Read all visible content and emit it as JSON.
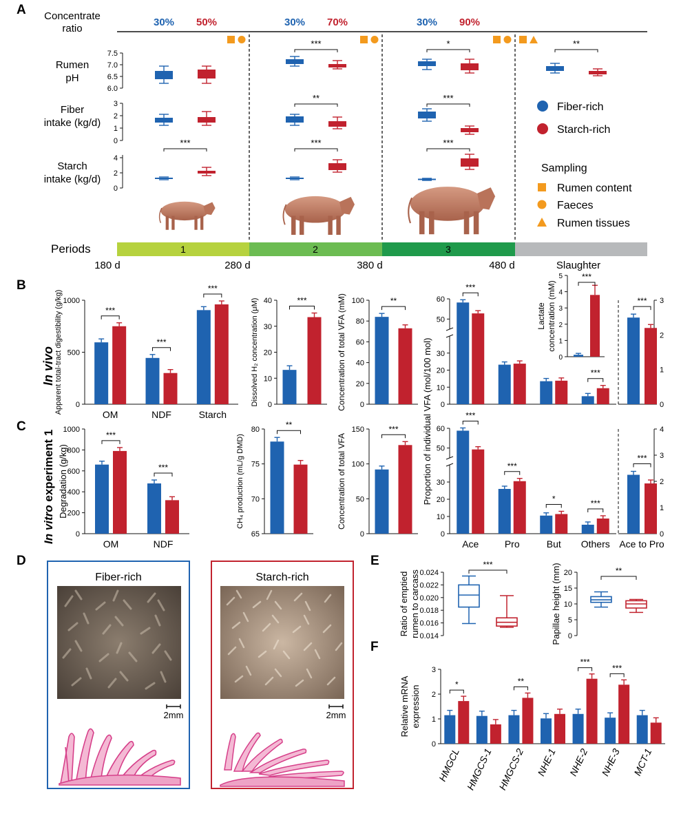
{
  "colors": {
    "fiber": "#1f63b0",
    "starch": "#c1222e",
    "orange": "#f39a1e",
    "period1": "#b6d23e",
    "period2": "#6cbc52",
    "period3": "#1f9a4b",
    "slaughter": "#b7b9bb"
  },
  "panelA": {
    "label": "A",
    "concentrate_label": [
      "Concentrate",
      "ratio"
    ],
    "ratios": [
      [
        "30%",
        "50%"
      ],
      [
        "30%",
        "70%"
      ],
      [
        "30%",
        "90%"
      ]
    ],
    "rows": [
      {
        "label": [
          "Rumen",
          "pH"
        ],
        "ticks": [
          "7.5",
          "7.0",
          "6.5",
          "6.0"
        ]
      },
      {
        "label": [
          "Fiber",
          "intake (kg/d)"
        ],
        "ticks": [
          "3",
          "2",
          "1",
          "0"
        ]
      },
      {
        "label": [
          "Starch",
          "intake (kg/d)"
        ],
        "ticks": [
          "4",
          "2",
          "0"
        ]
      }
    ],
    "sig": {
      "ph": [
        "***",
        "*",
        "**"
      ],
      "fiber": [
        "**",
        "***"
      ],
      "starch": [
        "***",
        "***",
        "***"
      ]
    },
    "legend": {
      "fiber": "Fiber-rich",
      "starch": "Starch-rich",
      "sampling_title": "Sampling",
      "content": "Rumen content",
      "faeces": "Faeces",
      "tissues": "Rumen tissues"
    },
    "periods_label": "Periods",
    "period_numbers": [
      "1",
      "2",
      "3"
    ],
    "days": [
      "180 d",
      "280 d",
      "380 d",
      "480 d"
    ],
    "slaughter": "Slaughter"
  },
  "panelB": {
    "label": "B",
    "side_label": "In vivo"
  },
  "panelC": {
    "label": "C",
    "side_label_italic": "In vitro",
    "side_label_rest": " experiment 1"
  },
  "panelD": {
    "label": "D",
    "fiber_title": "Fiber-rich",
    "starch_title": "Starch-rich",
    "scale": "2mm"
  },
  "panelE": {
    "label": "E"
  },
  "panelF": {
    "label": "F"
  },
  "chart_data": [
    {
      "id": "B1",
      "type": "bar",
      "categories": [
        "OM",
        "NDF",
        "Starch"
      ],
      "series": [
        {
          "values": [
            595,
            445,
            905
          ]
        },
        {
          "values": [
            750,
            300,
            960
          ]
        }
      ],
      "ylabel": "Apparent total-tract digestibility (g/kg)",
      "ylim": [
        0,
        1000
      ],
      "yticks": [
        "0",
        "500",
        "1000"
      ],
      "sig": [
        "***",
        "***",
        "***"
      ]
    },
    {
      "id": "B2",
      "type": "bar",
      "categories": [
        ""
      ],
      "series": [
        {
          "values": [
            13.2
          ]
        },
        {
          "values": [
            33.5
          ]
        }
      ],
      "ylabel": "Dissolved H₂ concentration (μM)",
      "ylim": [
        0,
        40
      ],
      "yticks": [
        "0",
        "10",
        "20",
        "30",
        "40"
      ],
      "sig": [
        "***"
      ]
    },
    {
      "id": "B3",
      "type": "bar",
      "categories": [
        ""
      ],
      "series": [
        {
          "values": [
            84
          ]
        },
        {
          "values": [
            73
          ]
        }
      ],
      "ylabel": "Concentration of total VFA (mM)",
      "ylim": [
        0,
        100
      ],
      "yticks": [
        "0",
        "20",
        "40",
        "60",
        "80",
        "100"
      ],
      "sig": [
        "**"
      ]
    },
    {
      "id": "B4",
      "type": "bar",
      "categories": [
        "Ace",
        "Pro",
        "But",
        "Others"
      ],
      "series": [
        {
          "values": [
            58.2,
            23.2,
            13.5,
            4.7
          ]
        },
        {
          "values": [
            52.8,
            23.8,
            13.8,
            9.4
          ]
        }
      ],
      "ylabel": "Proportion of individual VFA (mol/100 mol)",
      "yticks": [
        "0",
        "10",
        "20",
        "30",
        "50",
        "60"
      ],
      "sig": [
        "***",
        "",
        "",
        "***"
      ]
    },
    {
      "id": "B4i",
      "type": "bar",
      "categories": [
        ""
      ],
      "series": [
        {
          "values": [
            0.12
          ]
        },
        {
          "values": [
            3.8
          ]
        }
      ],
      "ylabel": "Lactate concentration (mM)",
      "ylim": [
        0,
        5
      ],
      "yticks": [
        "0",
        "1",
        "2",
        "3",
        "4",
        "5"
      ],
      "sig": [
        "***"
      ]
    },
    {
      "id": "B5",
      "type": "bar",
      "categories": [
        "Ace to Pro"
      ],
      "series": [
        {
          "values": [
            2.5
          ]
        },
        {
          "values": [
            2.2
          ]
        }
      ],
      "ylim": [
        0,
        3
      ],
      "yticks": [
        "0",
        "1",
        "2",
        "3"
      ],
      "sig": [
        "***"
      ]
    },
    {
      "id": "C1",
      "type": "bar",
      "categories": [
        "OM",
        "NDF"
      ],
      "series": [
        {
          "values": [
            660,
            480
          ]
        },
        {
          "values": [
            790,
            320
          ]
        }
      ],
      "ylabel": "Degradation (g/kg)",
      "ylim": [
        0,
        1000
      ],
      "yticks": [
        "0",
        "200",
        "400",
        "600",
        "800",
        "1000"
      ],
      "sig": [
        "***",
        "***"
      ]
    },
    {
      "id": "C2",
      "type": "bar",
      "categories": [
        ""
      ],
      "series": [
        {
          "values": [
            78.2
          ]
        },
        {
          "values": [
            74.9
          ]
        }
      ],
      "ylabel": "CH₄ production (mL/g DMD)",
      "ylim": [
        65,
        80
      ],
      "yticks": [
        "65",
        "70",
        "75",
        "80"
      ],
      "sig": [
        "**"
      ]
    },
    {
      "id": "C3",
      "type": "bar",
      "categories": [
        ""
      ],
      "series": [
        {
          "values": [
            92
          ]
        },
        {
          "values": [
            127
          ]
        }
      ],
      "ylabel": "Concentration of total VFA",
      "ylim": [
        0,
        150
      ],
      "yticks": [
        "0",
        "50",
        "100",
        "150"
      ],
      "sig": [
        "***"
      ]
    },
    {
      "id": "C4",
      "type": "bar",
      "categories": [
        "Ace",
        "Pro",
        "But",
        "Others"
      ],
      "series": [
        {
          "values": [
            58.8,
            26.0,
            10.5,
            5.2
          ]
        },
        {
          "values": [
            49.3,
            30.5,
            11.4,
            8.8
          ]
        }
      ],
      "yticks": [
        "0",
        "10",
        "20",
        "30",
        "50",
        "60"
      ],
      "sig": [
        "***",
        "***",
        "*",
        "***"
      ]
    },
    {
      "id": "C5",
      "type": "bar",
      "categories": [
        "Ace to Pro"
      ],
      "series": [
        {
          "values": [
            2.25
          ]
        },
        {
          "values": [
            1.92
          ]
        }
      ],
      "ylim": [
        0,
        4
      ],
      "yticks": [
        "0",
        "1",
        "2",
        "3",
        "4"
      ],
      "sig": [
        "***"
      ]
    },
    {
      "id": "E1",
      "type": "box",
      "ylabel": "Ratio of emptied rumen to carcass",
      "ylim": [
        0.014,
        0.024
      ],
      "yticks": [
        "0.014",
        "0.016",
        "0.018",
        "0.020",
        "0.022",
        "0.024"
      ],
      "boxes": [
        {
          "min": 0.0159,
          "q1": 0.0185,
          "median": 0.0204,
          "q3": 0.022,
          "max": 0.0234
        },
        {
          "min": 0.0153,
          "q1": 0.0155,
          "median": 0.0161,
          "q3": 0.0168,
          "max": 0.0203
        }
      ],
      "sig": "***"
    },
    {
      "id": "E2",
      "type": "box",
      "ylabel": "Papillae height (mm)",
      "ylim": [
        0,
        20
      ],
      "yticks": [
        "0",
        "5",
        "10",
        "15",
        "20"
      ],
      "boxes": [
        {
          "min": 9,
          "q1": 10.5,
          "median": 11.3,
          "q3": 12.3,
          "max": 13.8
        },
        {
          "min": 7.3,
          "q1": 8.7,
          "median": 10,
          "q3": 11,
          "max": 11.4
        }
      ],
      "sig": "**"
    },
    {
      "id": "F1",
      "type": "bar",
      "categories": [
        "HMGCL",
        "HMGCS-1",
        "HMGCS-2",
        "NHE-1",
        "NHE-2",
        "NHE-3",
        "MCT-1"
      ],
      "series": [
        {
          "values": [
            1.15,
            1.12,
            1.15,
            1.02,
            1.2,
            1.05,
            1.15
          ]
        },
        {
          "values": [
            1.72,
            0.78,
            1.85,
            1.2,
            2.62,
            2.38,
            0.85
          ]
        }
      ],
      "ylabel": "Relative mRNA expression",
      "ylim": [
        0,
        3
      ],
      "yticks": [
        "0",
        "1",
        "2",
        "3"
      ],
      "sig": [
        "*",
        "",
        "**",
        "",
        "***",
        "***",
        ""
      ]
    }
  ]
}
